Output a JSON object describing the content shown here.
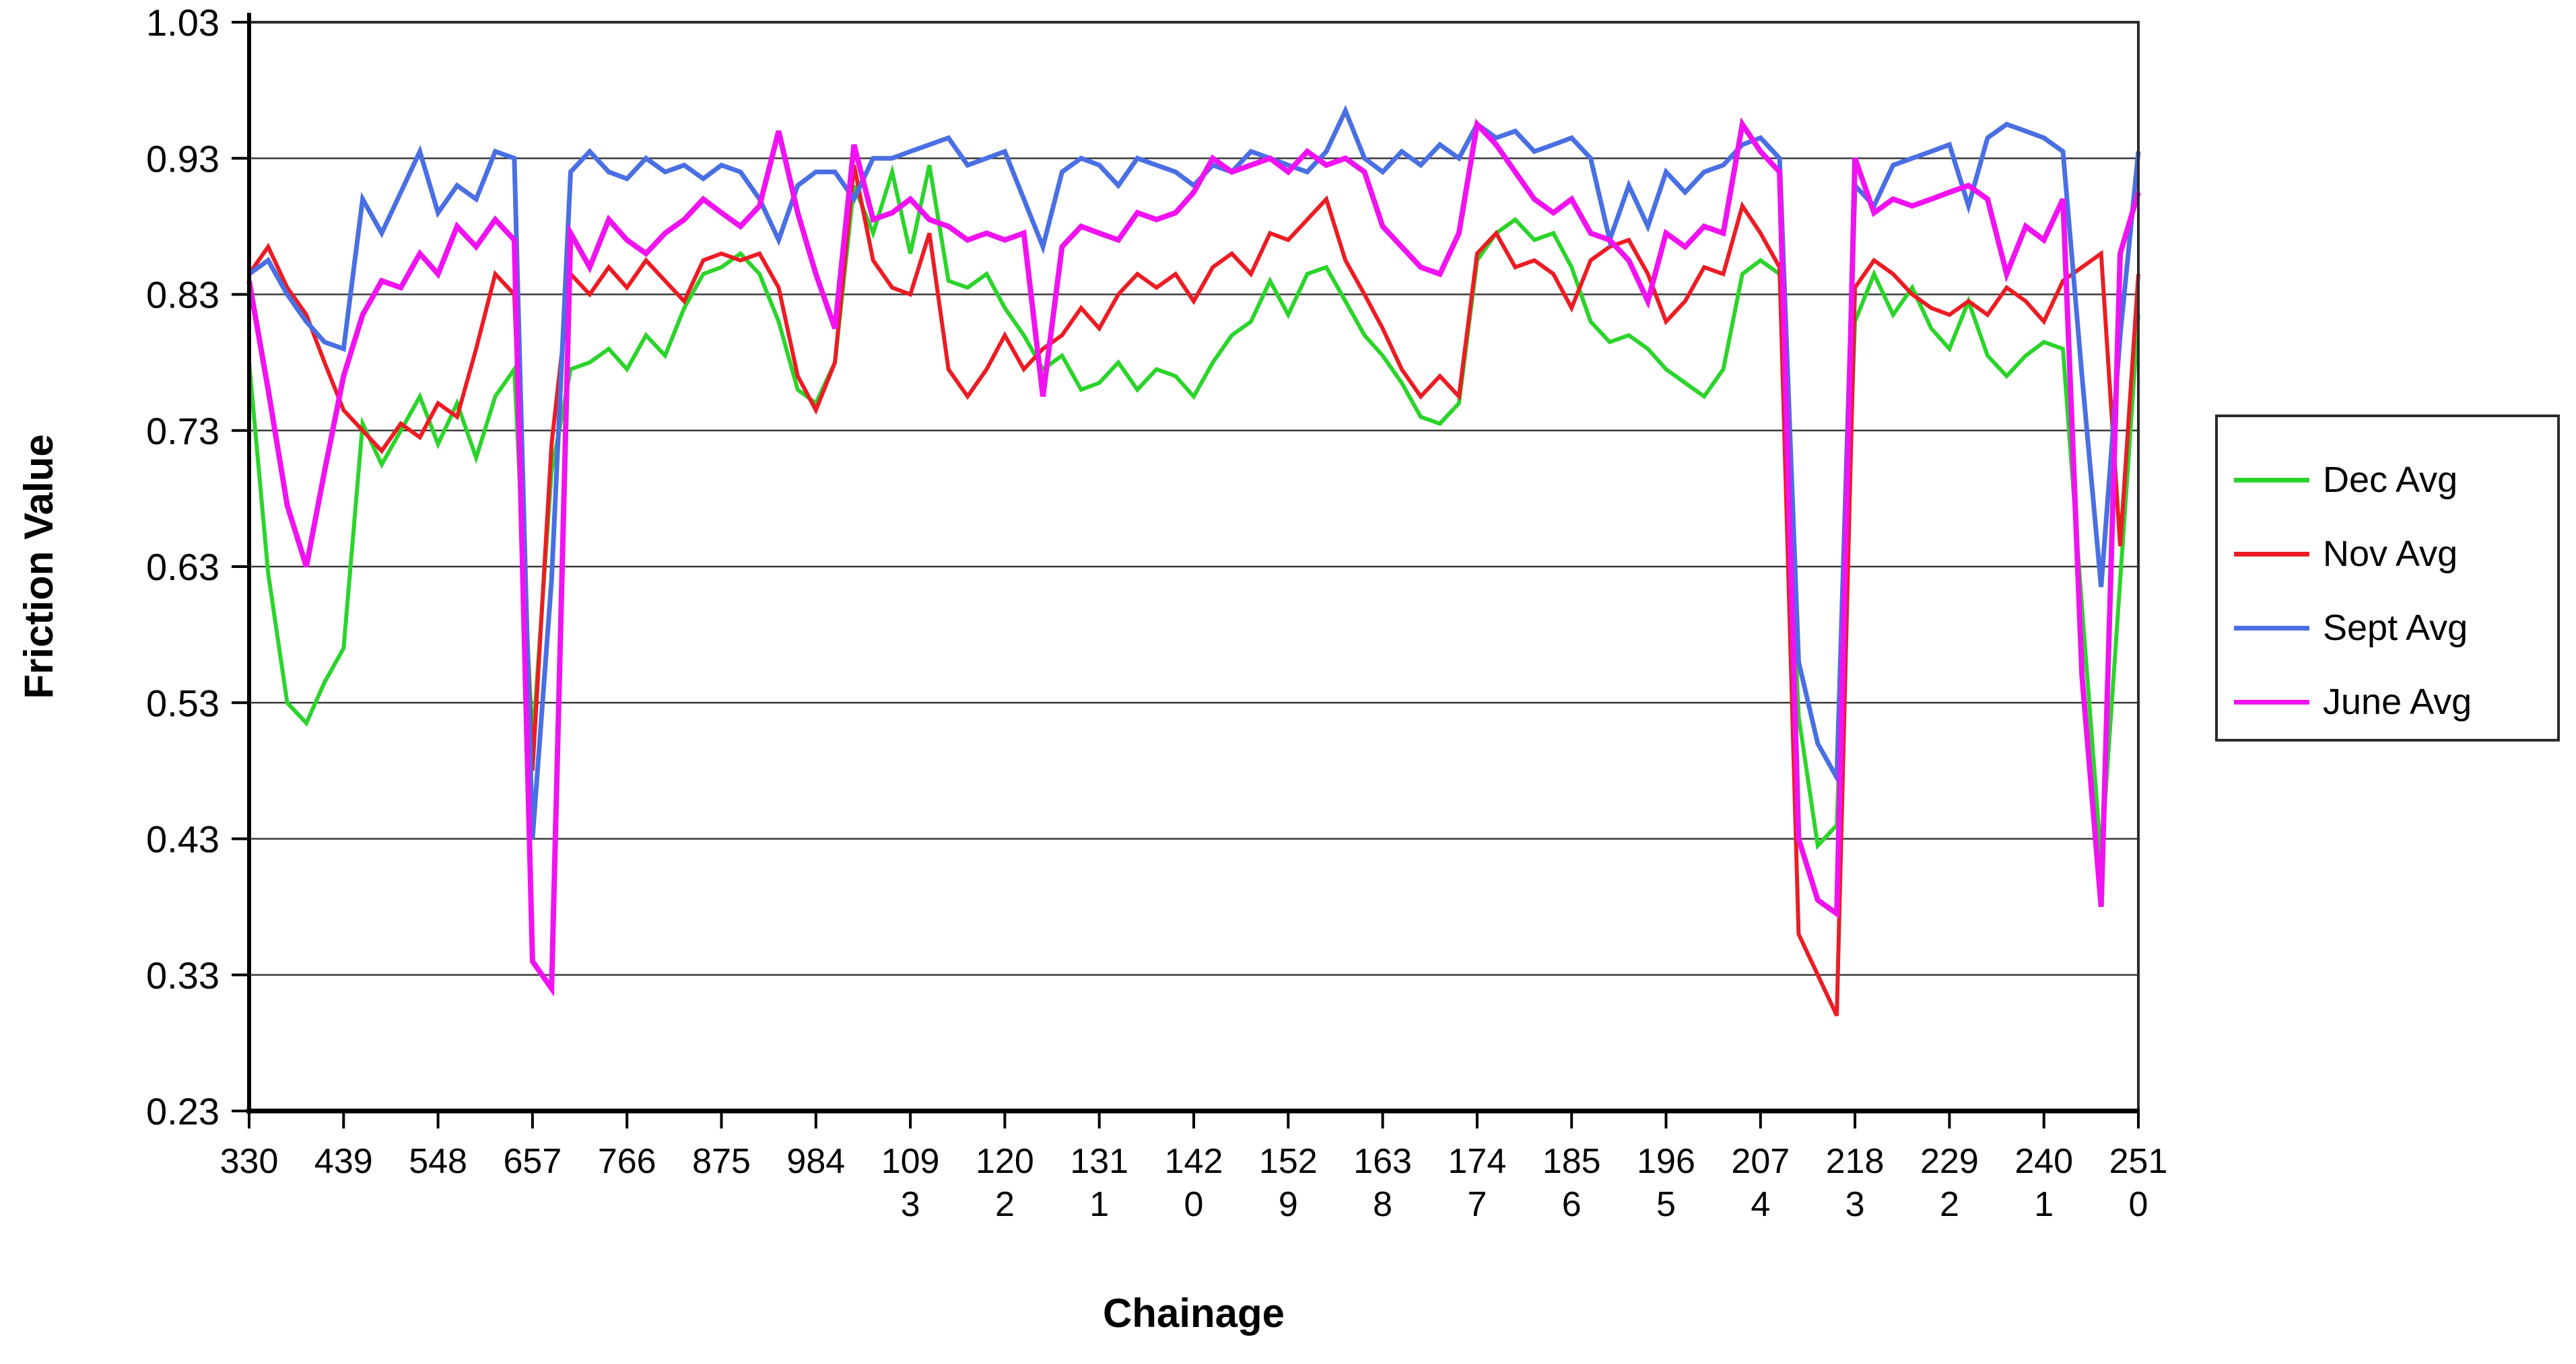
{
  "figure": {
    "y_axis": {
      "title": "Friction Value",
      "tick_labels": [
        "1.03",
        "0.93",
        "0.83",
        "0.73",
        "0.63",
        "0.53",
        "0.43",
        "0.33",
        "0.23"
      ],
      "tick_values": [
        1.03,
        0.93,
        0.83,
        0.73,
        0.63,
        0.53,
        0.43,
        0.33,
        0.23
      ]
    },
    "x_axis": {
      "title": "Chainage",
      "tick_values": [
        330,
        439,
        548,
        657,
        766,
        875,
        984,
        1093,
        1202,
        1311,
        1420,
        1529,
        1638,
        1747,
        1856,
        1965,
        2074,
        2183,
        2292,
        2401,
        2510
      ],
      "tick_labels": [
        [
          "330"
        ],
        [
          "439"
        ],
        [
          "548"
        ],
        [
          "657"
        ],
        [
          "766"
        ],
        [
          "875"
        ],
        [
          "984"
        ],
        [
          "109",
          "3"
        ],
        [
          "120",
          "2"
        ],
        [
          "131",
          "1"
        ],
        [
          "142",
          "0"
        ],
        [
          "152",
          "9"
        ],
        [
          "163",
          "8"
        ],
        [
          "174",
          "7"
        ],
        [
          "185",
          "6"
        ],
        [
          "196",
          "5"
        ],
        [
          "207",
          "4"
        ],
        [
          "218",
          "3"
        ],
        [
          "229",
          "2"
        ],
        [
          "240",
          "1"
        ],
        [
          "251",
          "0"
        ]
      ]
    },
    "legend": {
      "position": "right",
      "items": [
        {
          "label": "Dec Avg",
          "color": "#2BD42B"
        },
        {
          "label": "Nov Avg",
          "color": "#EC1C24"
        },
        {
          "label": "Sept Avg",
          "color": "#4A6FE3"
        },
        {
          "label": "June Avg",
          "color": "#F012F0"
        }
      ]
    },
    "colors": {
      "grid": "#3a3a3a",
      "frame": "#2b2b2b",
      "background": "#ffffff"
    }
  },
  "chart_data": {
    "type": "line",
    "title": "",
    "xlabel": "Chainage",
    "ylabel": "Friction Value",
    "xlim": [
      330,
      2510
    ],
    "ylim": [
      0.23,
      1.03
    ],
    "grid": "horizontal",
    "legend_position": "right",
    "x": [
      330,
      352,
      374,
      396,
      417,
      439,
      461,
      483,
      505,
      527,
      548,
      570,
      592,
      614,
      636,
      657,
      679,
      701,
      723,
      745,
      766,
      788,
      810,
      832,
      854,
      875,
      897,
      919,
      941,
      963,
      984,
      1006,
      1028,
      1050,
      1072,
      1093,
      1115,
      1137,
      1159,
      1181,
      1202,
      1224,
      1246,
      1268,
      1290,
      1311,
      1333,
      1355,
      1377,
      1399,
      1420,
      1442,
      1464,
      1486,
      1508,
      1529,
      1551,
      1573,
      1595,
      1617,
      1638,
      1660,
      1682,
      1704,
      1726,
      1747,
      1769,
      1791,
      1813,
      1835,
      1856,
      1878,
      1900,
      1922,
      1944,
      1965,
      1987,
      2009,
      2031,
      2053,
      2074,
      2096,
      2118,
      2140,
      2162,
      2183,
      2205,
      2227,
      2249,
      2271,
      2292,
      2314,
      2336,
      2358,
      2380,
      2401,
      2423,
      2445,
      2467,
      2489,
      2510
    ],
    "series": [
      {
        "name": "Dec Avg",
        "color": "#2BD42B",
        "stroke_width": 6,
        "values": [
          0.78,
          0.625,
          0.53,
          0.515,
          0.545,
          0.57,
          0.735,
          0.705,
          0.73,
          0.755,
          0.72,
          0.75,
          0.71,
          0.755,
          0.775,
          0.5,
          0.7,
          0.775,
          0.78,
          0.79,
          0.775,
          0.8,
          0.785,
          0.82,
          0.845,
          0.85,
          0.86,
          0.845,
          0.81,
          0.76,
          0.75,
          0.78,
          0.91,
          0.875,
          0.92,
          0.86,
          0.925,
          0.84,
          0.835,
          0.845,
          0.82,
          0.8,
          0.775,
          0.785,
          0.76,
          0.765,
          0.78,
          0.76,
          0.775,
          0.77,
          0.755,
          0.78,
          0.8,
          0.81,
          0.84,
          0.815,
          0.845,
          0.85,
          0.825,
          0.8,
          0.785,
          0.765,
          0.74,
          0.735,
          0.75,
          0.855,
          0.875,
          0.885,
          0.87,
          0.875,
          0.85,
          0.81,
          0.795,
          0.8,
          0.79,
          0.775,
          0.765,
          0.755,
          0.775,
          0.845,
          0.855,
          0.845,
          0.52,
          0.425,
          0.44,
          0.81,
          0.845,
          0.815,
          0.835,
          0.805,
          0.79,
          0.825,
          0.785,
          0.77,
          0.785,
          0.795,
          0.79,
          0.6,
          0.415,
          0.62,
          0.815
        ]
      },
      {
        "name": "Nov Avg",
        "color": "#EC1C24",
        "stroke_width": 6,
        "values": [
          0.845,
          0.865,
          0.835,
          0.815,
          0.78,
          0.745,
          0.73,
          0.715,
          0.735,
          0.725,
          0.75,
          0.74,
          0.79,
          0.845,
          0.83,
          0.48,
          0.72,
          0.845,
          0.83,
          0.85,
          0.835,
          0.855,
          0.84,
          0.825,
          0.855,
          0.86,
          0.855,
          0.86,
          0.835,
          0.77,
          0.745,
          0.78,
          0.925,
          0.855,
          0.835,
          0.83,
          0.875,
          0.775,
          0.755,
          0.775,
          0.8,
          0.775,
          0.79,
          0.8,
          0.82,
          0.805,
          0.83,
          0.845,
          0.835,
          0.845,
          0.825,
          0.85,
          0.86,
          0.845,
          0.875,
          0.87,
          0.885,
          0.9,
          0.855,
          0.83,
          0.805,
          0.775,
          0.755,
          0.77,
          0.755,
          0.86,
          0.875,
          0.85,
          0.855,
          0.845,
          0.82,
          0.855,
          0.865,
          0.87,
          0.845,
          0.81,
          0.825,
          0.85,
          0.845,
          0.895,
          0.875,
          0.85,
          0.36,
          0.33,
          0.3,
          0.835,
          0.855,
          0.845,
          0.83,
          0.82,
          0.815,
          0.825,
          0.815,
          0.835,
          0.825,
          0.81,
          0.84,
          0.85,
          0.86,
          0.645,
          0.845
        ]
      },
      {
        "name": "Sept Avg",
        "color": "#4A6FE3",
        "stroke_width": 7,
        "values": [
          0.845,
          0.855,
          0.83,
          0.81,
          0.795,
          0.79,
          0.9,
          0.875,
          0.905,
          0.935,
          0.89,
          0.91,
          0.9,
          0.935,
          0.93,
          0.43,
          0.62,
          0.92,
          0.935,
          0.92,
          0.915,
          0.93,
          0.92,
          0.925,
          0.915,
          0.925,
          0.92,
          0.9,
          0.87,
          0.91,
          0.92,
          0.92,
          0.9,
          0.93,
          0.93,
          0.935,
          0.94,
          0.945,
          0.925,
          0.93,
          0.935,
          0.9,
          0.865,
          0.92,
          0.93,
          0.925,
          0.91,
          0.93,
          0.925,
          0.92,
          0.91,
          0.925,
          0.92,
          0.935,
          0.93,
          0.925,
          0.92,
          0.935,
          0.965,
          0.93,
          0.92,
          0.935,
          0.925,
          0.94,
          0.93,
          0.955,
          0.945,
          0.95,
          0.935,
          0.94,
          0.945,
          0.93,
          0.87,
          0.91,
          0.88,
          0.92,
          0.905,
          0.92,
          0.925,
          0.94,
          0.945,
          0.93,
          0.56,
          0.5,
          0.475,
          0.91,
          0.895,
          0.925,
          0.93,
          0.935,
          0.94,
          0.895,
          0.945,
          0.955,
          0.95,
          0.945,
          0.935,
          0.77,
          0.615,
          0.8,
          0.935
        ]
      },
      {
        "name": "June Avg",
        "color": "#F012F0",
        "stroke_width": 8,
        "values": [
          0.84,
          0.76,
          0.675,
          0.63,
          0.7,
          0.77,
          0.815,
          0.84,
          0.835,
          0.86,
          0.845,
          0.88,
          0.865,
          0.885,
          0.87,
          0.34,
          0.32,
          0.875,
          0.85,
          0.885,
          0.87,
          0.86,
          0.875,
          0.885,
          0.9,
          0.89,
          0.88,
          0.895,
          0.95,
          0.89,
          0.845,
          0.805,
          0.94,
          0.885,
          0.89,
          0.9,
          0.885,
          0.88,
          0.87,
          0.875,
          0.87,
          0.875,
          0.755,
          0.865,
          0.88,
          0.875,
          0.87,
          0.89,
          0.885,
          0.89,
          0.905,
          0.93,
          0.92,
          0.925,
          0.93,
          0.92,
          0.935,
          0.925,
          0.93,
          0.92,
          0.88,
          0.865,
          0.85,
          0.845,
          0.875,
          0.955,
          0.94,
          0.92,
          0.9,
          0.89,
          0.9,
          0.875,
          0.87,
          0.855,
          0.825,
          0.875,
          0.865,
          0.88,
          0.875,
          0.955,
          0.935,
          0.92,
          0.43,
          0.385,
          0.375,
          0.93,
          0.89,
          0.9,
          0.895,
          0.9,
          0.905,
          0.91,
          0.9,
          0.845,
          0.88,
          0.87,
          0.9,
          0.55,
          0.38,
          0.86,
          0.905
        ]
      }
    ]
  }
}
